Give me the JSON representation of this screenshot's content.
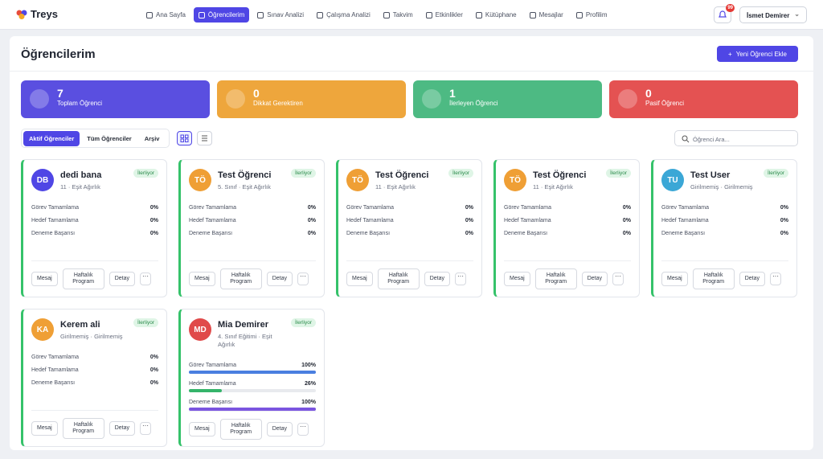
{
  "nav": {
    "logo": "Treys",
    "items": [
      "Ana Sayfa",
      "Öğrencilerim",
      "Sınav Analizi",
      "Çalışma Analizi",
      "Takvim",
      "Etkinlikler",
      "Kütüphane",
      "Mesajlar",
      "Profilim"
    ],
    "active": 1,
    "notifications": "99",
    "user": "İsmet Demirer"
  },
  "header": {
    "title": "Öğrencilerim",
    "add_button": "Yeni Öğrenci Ekle"
  },
  "stats": [
    {
      "value": "7",
      "label": "Toplam Öğrenci",
      "color": "#5a4fe0"
    },
    {
      "value": "0",
      "label": "Dikkat Gerektiren",
      "color": "#eea63c"
    },
    {
      "value": "1",
      "label": "İlerleyen Öğrenci",
      "color": "#4dba83"
    },
    {
      "value": "0",
      "label": "Pasif Öğrenci",
      "color": "#e45252"
    }
  ],
  "tabs": {
    "items": [
      "Aktif Öğrenciler",
      "Tüm Öğrenciler",
      "Arşiv"
    ],
    "active": 0
  },
  "search_placeholder": "Öğrenci Ara...",
  "card_actions": [
    "Mesaj",
    "Haftalık Program",
    "Detay"
  ],
  "students": [
    {
      "initials": "DB",
      "name": "dedi bana",
      "meta": [
        "11",
        "Eşit Ağırlık"
      ],
      "status": "İlerliyor",
      "avatar_color": "#4f46e5",
      "metrics": [
        {
          "label": "Görev Tamamlama",
          "value": 0,
          "value_label": "0%"
        },
        {
          "label": "Hedef Tamamlama",
          "value": 0,
          "value_label": "0%"
        },
        {
          "label": "Deneme Başarısı",
          "value": 0,
          "value_label": "0%"
        }
      ]
    },
    {
      "initials": "TÖ",
      "name": "Test Öğrenci",
      "meta": [
        "5. Sınıf",
        "Eşit Ağırlık"
      ],
      "status": "İlerliyor",
      "avatar_color": "#ef9f35",
      "metrics": [
        {
          "label": "Görev Tamamlama",
          "value": 0,
          "value_label": "0%"
        },
        {
          "label": "Hedef Tamamlama",
          "value": 0,
          "value_label": "0%"
        },
        {
          "label": "Deneme Başarısı",
          "value": 0,
          "value_label": "0%"
        }
      ]
    },
    {
      "initials": "TÖ",
      "name": "Test Öğrenci",
      "meta": [
        "11",
        "Eşit Ağırlık"
      ],
      "status": "İlerliyor",
      "avatar_color": "#ef9f35",
      "metrics": [
        {
          "label": "Görev Tamamlama",
          "value": 0,
          "value_label": "0%"
        },
        {
          "label": "Hedef Tamamlama",
          "value": 0,
          "value_label": "0%"
        },
        {
          "label": "Deneme Başarısı",
          "value": 0,
          "value_label": "0%"
        }
      ]
    },
    {
      "initials": "TÖ",
      "name": "Test Öğrenci",
      "meta": [
        "11",
        "Eşit Ağırlık"
      ],
      "status": "İlerliyor",
      "avatar_color": "#ef9f35",
      "metrics": [
        {
          "label": "Görev Tamamlama",
          "value": 0,
          "value_label": "0%"
        },
        {
          "label": "Hedef Tamamlama",
          "value": 0,
          "value_label": "0%"
        },
        {
          "label": "Deneme Başarısı",
          "value": 0,
          "value_label": "0%"
        }
      ]
    },
    {
      "initials": "TU",
      "name": "Test User",
      "meta": [
        "Girilmemiş",
        "Girilmemiş"
      ],
      "status": "İlerliyor",
      "avatar_color": "#3ba7d6",
      "metrics": [
        {
          "label": "Görev Tamamlama",
          "value": 0,
          "value_label": "0%"
        },
        {
          "label": "Hedef Tamamlama",
          "value": 0,
          "value_label": "0%"
        },
        {
          "label": "Deneme Başarısı",
          "value": 0,
          "value_label": "0%"
        }
      ]
    },
    {
      "initials": "KA",
      "name": "Kerem ali",
      "meta": [
        "Girilmemiş",
        "Girilmemiş"
      ],
      "status": "İlerliyor",
      "avatar_color": "#ef9f35",
      "metrics": [
        {
          "label": "Görev Tamamlama",
          "value": 0,
          "value_label": "0%"
        },
        {
          "label": "Hedef Tamamlama",
          "value": 0,
          "value_label": "0%"
        },
        {
          "label": "Deneme Başarısı",
          "value": 0,
          "value_label": "0%"
        }
      ]
    },
    {
      "initials": "MD",
      "name": "Mia Demirer",
      "meta": [
        "4. Sınıf Eğitimi",
        "Eşit Ağırlık"
      ],
      "status": "İlerliyor",
      "avatar_color": "#e04a4a",
      "metrics": [
        {
          "label": "Görev Tamamlama",
          "value": 100,
          "value_label": "100%"
        },
        {
          "label": "Hedef Tamamlama",
          "value": 26,
          "value_label": "26%"
        },
        {
          "label": "Deneme Başarısı",
          "value": 100,
          "value_label": "100%"
        }
      ]
    }
  ]
}
